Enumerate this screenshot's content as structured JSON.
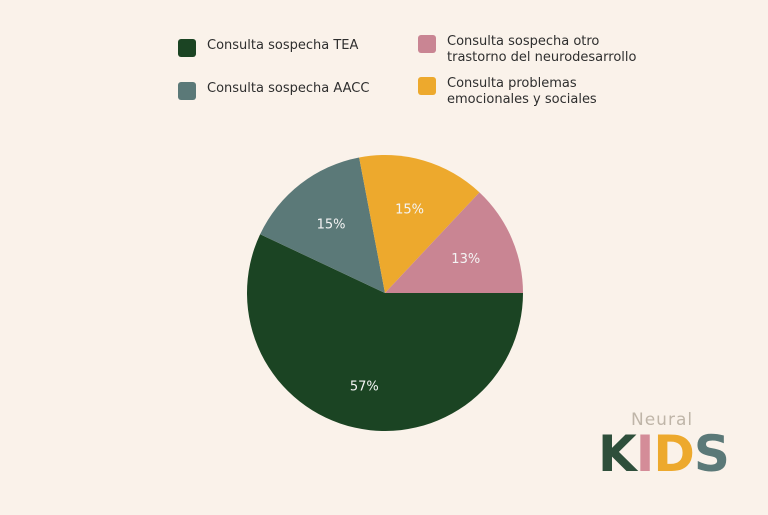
{
  "chart_data": {
    "type": "pie",
    "slices": [
      {
        "label": "Consulta sospecha TEA",
        "value": 57,
        "display": "57%",
        "color": "#1b4423"
      },
      {
        "label": "Consulta sospecha AACC",
        "value": 15,
        "display": "15%",
        "color": "#5b7978"
      },
      {
        "label": "Consulta problemas emocionales y sociales",
        "value": 15,
        "display": "15%",
        "color": "#eda92d"
      },
      {
        "label": "Consulta sospecha otro trastorno del neurodesarrollo",
        "value": 13,
        "display": "13%",
        "color": "#c98593"
      }
    ],
    "start": "3 o'clock",
    "direction": "clockwise",
    "legend_position": "top"
  },
  "legend": [
    {
      "label": "Consulta sospecha TEA",
      "color": "#1b4423"
    },
    {
      "label": "Consulta sospecha otro trastorno del neurodesarrollo",
      "color": "#c98593"
    },
    {
      "label": "Consulta sospecha AACC",
      "color": "#5b7978"
    },
    {
      "label": "Consulta problemas emocionales y sociales",
      "color": "#eda92d"
    }
  ],
  "brand": {
    "top": "Neural",
    "letters": [
      {
        "char": "K",
        "color": "#2e4f3b"
      },
      {
        "char": "I",
        "color": "#d48c98"
      },
      {
        "char": "D",
        "color": "#eda92d"
      },
      {
        "char": "S",
        "color": "#5b7978"
      }
    ]
  }
}
